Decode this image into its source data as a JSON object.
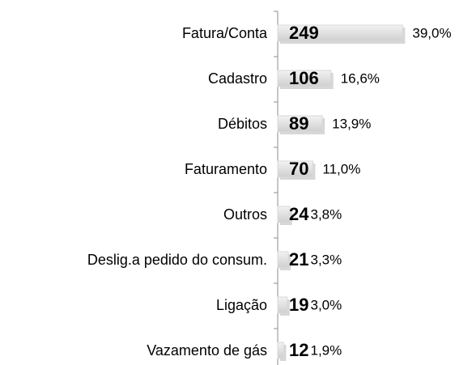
{
  "chart_data": {
    "type": "barh",
    "categories": [
      "Fatura/Conta",
      "Cadastro",
      "Débitos",
      "Faturamento",
      "Outros",
      "Deslig.a pedido do consum.",
      "Ligação",
      "Vazamento de gás"
    ],
    "values": [
      249,
      106,
      89,
      70,
      24,
      21,
      19,
      12
    ],
    "percent_labels": [
      "39,0%",
      "16,6%",
      "13,9%",
      "11,0%",
      "3,8%",
      "3,3%",
      "3,0%",
      "1,9%"
    ],
    "color": "#d9d9d9",
    "xlim": [
      0,
      250
    ]
  }
}
